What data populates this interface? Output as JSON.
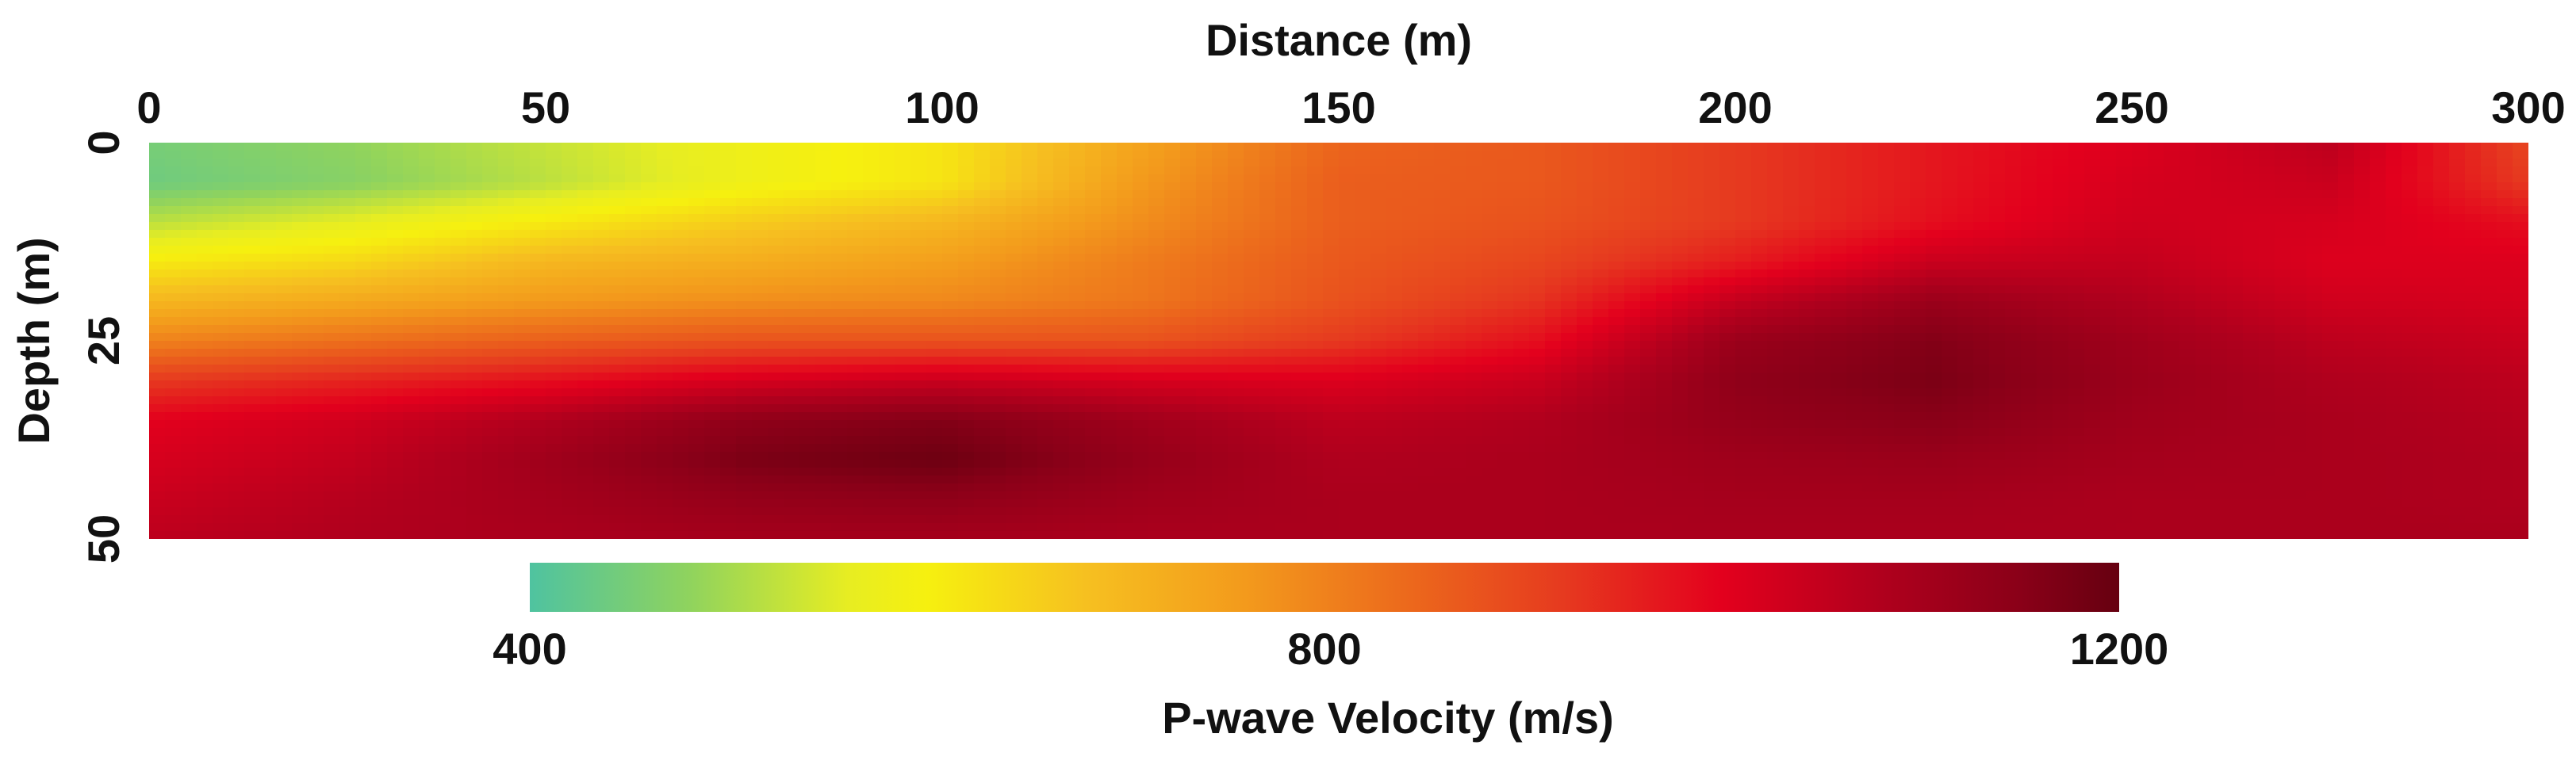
{
  "chart_data": {
    "type": "heatmap",
    "title": "",
    "xlabel": "Distance (m)",
    "ylabel": "Depth (m)",
    "xlim": [
      0,
      300
    ],
    "ylim": [
      0,
      50
    ],
    "x_ticks": [
      "0",
      "50",
      "100",
      "150",
      "200",
      "250",
      "300"
    ],
    "y_ticks": [
      "0",
      "25",
      "50"
    ],
    "colorbar": {
      "label": "P-wave Velocity (m/s)",
      "range": [
        400,
        1200
      ],
      "ticks": [
        "400",
        "800",
        "1200"
      ],
      "stops": [
        {
          "value": 400,
          "color": "#4fc3a0"
        },
        {
          "value": 480,
          "color": "#8fd35e"
        },
        {
          "value": 560,
          "color": "#e7ed22"
        },
        {
          "value": 600,
          "color": "#f6f00f"
        },
        {
          "value": 680,
          "color": "#f6c020"
        },
        {
          "value": 760,
          "color": "#f39a1c"
        },
        {
          "value": 840,
          "color": "#ec6a1c"
        },
        {
          "value": 920,
          "color": "#e63a1f"
        },
        {
          "value": 1000,
          "color": "#e3001d"
        },
        {
          "value": 1080,
          "color": "#b0001d"
        },
        {
          "value": 1150,
          "color": "#8a0018"
        },
        {
          "value": 1200,
          "color": "#660010"
        }
      ]
    },
    "x": [
      0,
      25,
      50,
      75,
      100,
      125,
      150,
      175,
      200,
      225,
      250,
      275,
      300
    ],
    "y": [
      0,
      5,
      10,
      15,
      20,
      25,
      30,
      35,
      40,
      45,
      50
    ],
    "z": [
      [
        450,
        480,
        530,
        580,
        620,
        740,
        850,
        870,
        920,
        970,
        1010,
        1060,
        900
      ],
      [
        440,
        470,
        520,
        580,
        620,
        760,
        860,
        870,
        920,
        970,
        1020,
        1040,
        920
      ],
      [
        520,
        560,
        610,
        660,
        700,
        780,
        860,
        880,
        920,
        980,
        1030,
        1020,
        980
      ],
      [
        610,
        640,
        700,
        720,
        750,
        810,
        870,
        900,
        960,
        1040,
        1050,
        1010,
        1010
      ],
      [
        700,
        730,
        760,
        780,
        790,
        820,
        880,
        930,
        1050,
        1120,
        1080,
        1030,
        1020
      ],
      [
        800,
        830,
        860,
        880,
        880,
        880,
        920,
        980,
        1120,
        1160,
        1110,
        1060,
        1040
      ],
      [
        920,
        950,
        980,
        1020,
        1040,
        1020,
        1010,
        1040,
        1140,
        1170,
        1120,
        1080,
        1060
      ],
      [
        1000,
        1030,
        1080,
        1140,
        1160,
        1110,
        1060,
        1080,
        1130,
        1150,
        1110,
        1090,
        1070
      ],
      [
        1020,
        1050,
        1110,
        1170,
        1190,
        1130,
        1080,
        1090,
        1110,
        1120,
        1100,
        1090,
        1080
      ],
      [
        1040,
        1070,
        1100,
        1130,
        1140,
        1110,
        1090,
        1090,
        1100,
        1100,
        1090,
        1090,
        1080
      ],
      [
        1060,
        1080,
        1090,
        1100,
        1100,
        1090,
        1090,
        1090,
        1090,
        1090,
        1090,
        1090,
        1090
      ]
    ]
  }
}
